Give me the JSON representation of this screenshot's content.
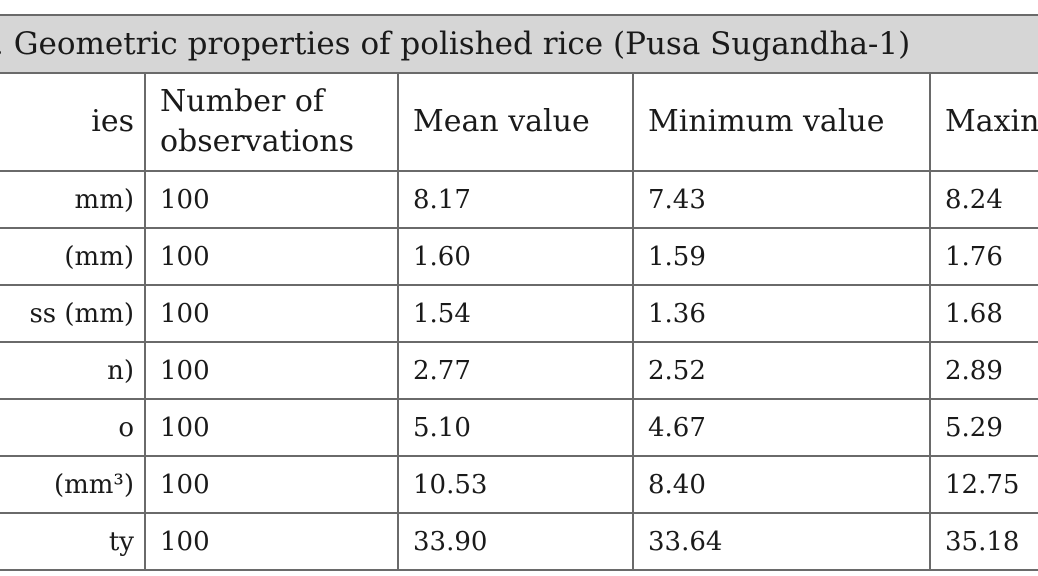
{
  "table": {
    "caption": ". Geometric properties of polished rice (Pusa Sugandha-1)",
    "headers": [
      "ies",
      "Number of observations",
      "Mean value",
      "Minimum value",
      "Maxin"
    ],
    "rows": [
      {
        "property": "mm)",
        "observations": "100",
        "mean": "8.17",
        "minimum": "7.43",
        "maximum": "8.24"
      },
      {
        "property": "(mm)",
        "observations": "100",
        "mean": "1.60",
        "minimum": "1.59",
        "maximum": "1.76"
      },
      {
        "property": "ss (mm)",
        "observations": "100",
        "mean": "1.54",
        "minimum": "1.36",
        "maximum": "1.68"
      },
      {
        "property": "n)",
        "observations": "100",
        "mean": "2.77",
        "minimum": "2.52",
        "maximum": "2.89"
      },
      {
        "property": "o",
        "observations": "100",
        "mean": "5.10",
        "minimum": "4.67",
        "maximum": "5.29"
      },
      {
        "property": "(mm³)",
        "observations": "100",
        "mean": "10.53",
        "minimum": "8.40",
        "maximum": "12.75"
      },
      {
        "property": "ty",
        "observations": "100",
        "mean": "33.90",
        "minimum": "33.64",
        "maximum": "35.18"
      }
    ]
  }
}
